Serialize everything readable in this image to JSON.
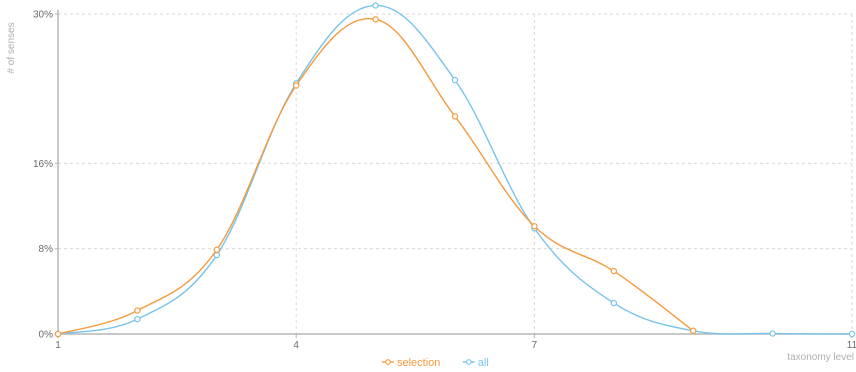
{
  "chart_data": {
    "type": "line",
    "xlabel": "taxonomy level",
    "ylabel": "# of senses",
    "xlim": [
      1,
      11
    ],
    "ylim": [
      0,
      30
    ],
    "x_ticks": [
      1,
      4,
      7,
      11
    ],
    "x_tick_labels": [
      "1",
      "4",
      "7",
      "11"
    ],
    "y_ticks": [
      0,
      8,
      16,
      30
    ],
    "y_tick_labels": [
      "0%",
      "8%",
      "16%",
      "30%"
    ],
    "y_unit": "%",
    "grid": true,
    "legend_position": "bottom-center",
    "series": [
      {
        "name": "selection",
        "color": "#f59a3c",
        "x": [
          1,
          2,
          3,
          4,
          5,
          6,
          7,
          8,
          9
        ],
        "y": [
          0,
          2.2,
          7.9,
          23.3,
          29.5,
          20.4,
          10.1,
          5.9,
          0.3
        ]
      },
      {
        "name": "all",
        "color": "#78c4ea",
        "x": [
          1,
          2,
          3,
          4,
          5,
          6,
          7,
          8,
          9,
          10,
          11
        ],
        "y": [
          0,
          1.4,
          7.4,
          23.5,
          30.8,
          23.8,
          9.9,
          2.9,
          0.3,
          0.05,
          0.0
        ]
      }
    ]
  }
}
